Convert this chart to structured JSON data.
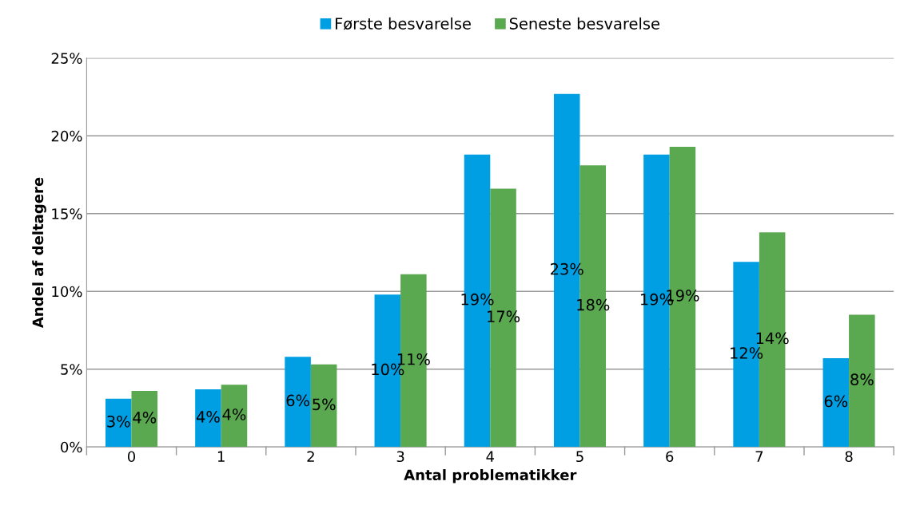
{
  "chart_data": {
    "type": "bar",
    "xlabel": "Antal problematikker",
    "ylabel": "Andel af deltagere",
    "categories": [
      "0",
      "1",
      "2",
      "3",
      "4",
      "5",
      "6",
      "7",
      "8"
    ],
    "series": [
      {
        "name": "Første besvarelse",
        "color": "#009fe3",
        "values": [
          3.1,
          3.7,
          5.8,
          9.8,
          18.8,
          22.7,
          18.8,
          11.9,
          5.7
        ],
        "value_labels": [
          "3%",
          "4%",
          "6%",
          "10%",
          "19%",
          "23%",
          "19%",
          "12%",
          "6%"
        ]
      },
      {
        "name": "Seneste besvarelse",
        "color": "#5aa850",
        "values": [
          3.6,
          4.0,
          5.3,
          11.1,
          16.6,
          18.1,
          19.3,
          13.8,
          8.5
        ],
        "value_labels": [
          "4%",
          "4%",
          "5%",
          "11%",
          "17%",
          "18%",
          "19%",
          "14%",
          "8%"
        ]
      }
    ],
    "ylim": [
      0,
      25
    ],
    "yticks": [
      {
        "value": 0,
        "label": "0%"
      },
      {
        "value": 5,
        "label": "5%"
      },
      {
        "value": 10,
        "label": "10%"
      },
      {
        "value": 15,
        "label": "15%"
      },
      {
        "value": 20,
        "label": "20%"
      },
      {
        "value": 25,
        "label": "25%"
      }
    ],
    "grid": "y",
    "legend": "top"
  }
}
